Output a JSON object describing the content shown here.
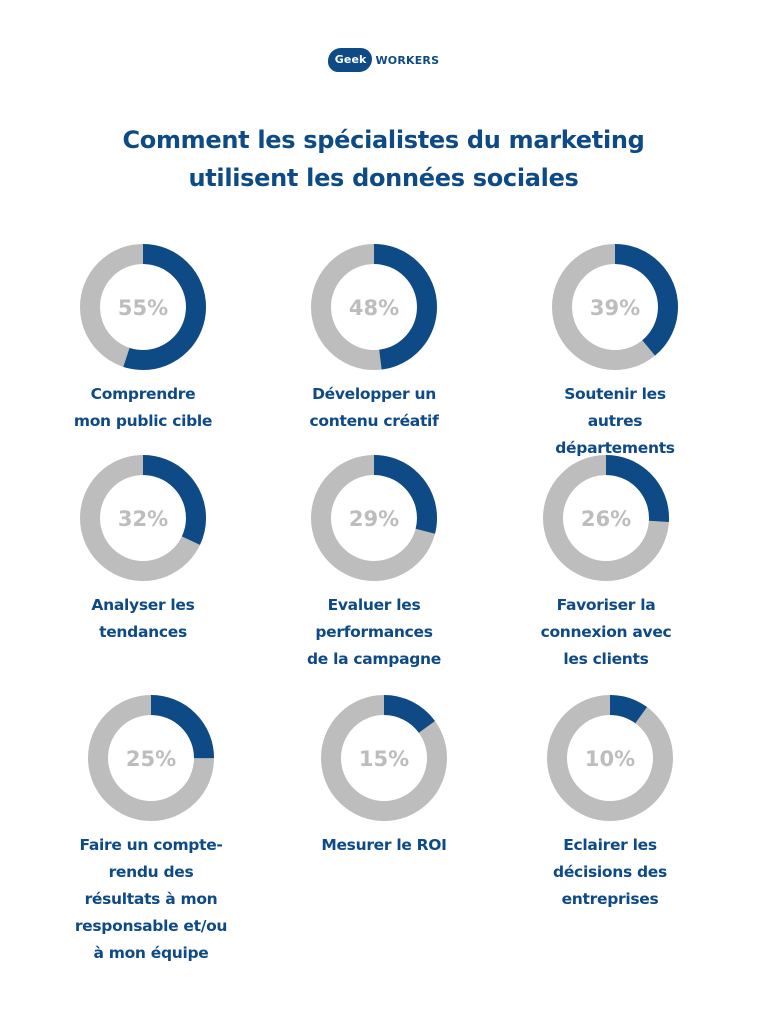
{
  "logo": {
    "badge": "Geek",
    "text": "WORKERS"
  },
  "title_line1": "Comment les spécialistes du marketing",
  "title_line2": "utilisent les données sociales",
  "colors": {
    "accent": "#0d4a86",
    "track": "#bdbdbd"
  },
  "chart_data": {
    "type": "pie",
    "title": "Comment les spécialistes du marketing utilisent les données sociales",
    "categories": [
      "Comprendre mon public cible",
      "Développer un contenu créatif",
      "Soutenir les autres départements",
      "Analyser les tendances",
      "Evaluer les performances de la campagne",
      "Favoriser la connexion avec les clients",
      "Faire un compte-rendu des résultats à mon responsable et/ou à mon équipe",
      "Mesurer le ROI",
      "Eclairer les décisions des entreprises"
    ],
    "values": [
      55,
      48,
      39,
      32,
      29,
      26,
      25,
      15,
      10
    ],
    "unit": "%",
    "items": [
      {
        "value": 55,
        "pct_label": "55%",
        "label": "Comprendre\nmon public cible"
      },
      {
        "value": 48,
        "pct_label": "48%",
        "label": "Développer un\ncontenu créatif"
      },
      {
        "value": 39,
        "pct_label": "39%",
        "label": "Soutenir les\nautres\ndépartements"
      },
      {
        "value": 32,
        "pct_label": "32%",
        "label": "Analyser les\ntendances"
      },
      {
        "value": 29,
        "pct_label": "29%",
        "label": "Evaluer les\nperformances\nde la campagne"
      },
      {
        "value": 26,
        "pct_label": "26%",
        "label": "Favoriser la\nconnexion avec\nles clients"
      },
      {
        "value": 25,
        "pct_label": "25%",
        "label": "Faire un compte-\nrendu des\nrésultats à mon\nresponsable et/ou\nà mon équipe"
      },
      {
        "value": 15,
        "pct_label": "15%",
        "label": "Mesurer le ROI"
      },
      {
        "value": 10,
        "pct_label": "10%",
        "label": "Eclairer les\ndécisions des\nentreprises"
      }
    ]
  }
}
